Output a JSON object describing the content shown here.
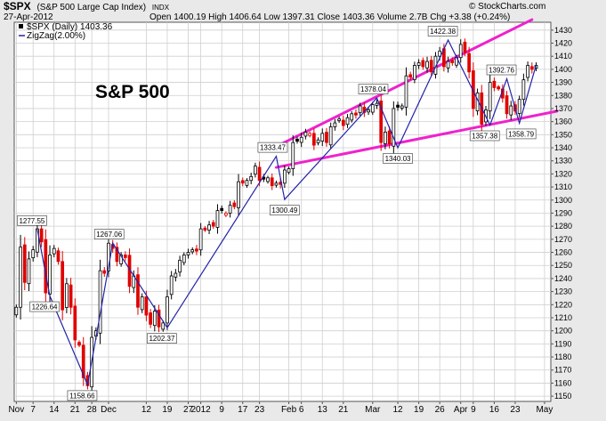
{
  "header": {
    "symbol": "$SPX",
    "name": "(S&P 500 Large Cap Index)",
    "exchange": "INDX",
    "date": "27-Apr-2012",
    "ohlc_text": "Open 1400.19  High 1406.64  Low 1397.31  Close 1403.36  Volume 2.7B  Chg +3.38 (+0.24%)",
    "brand": "© StockCharts.com",
    "legend_price": "$SPX (Daily) 1403.36",
    "legend_zigzag": "ZigZag(2.00%)",
    "title_overlay": "S&P 500"
  },
  "chart_data": {
    "type": "candlestick",
    "title": "S&P 500",
    "ylim": [
      1146,
      1436
    ],
    "y_ticks": [
      1150,
      1160,
      1170,
      1180,
      1190,
      1200,
      1210,
      1220,
      1230,
      1240,
      1250,
      1260,
      1270,
      1280,
      1290,
      1300,
      1310,
      1320,
      1330,
      1340,
      1350,
      1360,
      1370,
      1380,
      1390,
      1400,
      1410,
      1420,
      1430
    ],
    "x_tick_labels": [
      {
        "label": "Nov",
        "idx": 0
      },
      {
        "label": "7",
        "idx": 4
      },
      {
        "label": "14",
        "idx": 9
      },
      {
        "label": "21",
        "idx": 14
      },
      {
        "label": "28",
        "idx": 18
      },
      {
        "label": "Dec",
        "idx": 22
      },
      {
        "label": "12",
        "idx": 31
      },
      {
        "label": "19",
        "idx": 36
      },
      {
        "label": "27",
        "idx": 41
      },
      {
        "label": "2012",
        "idx": 44
      },
      {
        "label": "9",
        "idx": 49
      },
      {
        "label": "17",
        "idx": 54
      },
      {
        "label": "23",
        "idx": 58
      },
      {
        "label": "Feb",
        "idx": 65
      },
      {
        "label": "6",
        "idx": 68
      },
      {
        "label": "13",
        "idx": 73
      },
      {
        "label": "21",
        "idx": 78
      },
      {
        "label": "Mar",
        "idx": 85
      },
      {
        "label": "12",
        "idx": 91
      },
      {
        "label": "19",
        "idx": 96
      },
      {
        "label": "26",
        "idx": 101
      },
      {
        "label": "Apr",
        "idx": 106
      },
      {
        "label": "9",
        "idx": 109
      },
      {
        "label": "16",
        "idx": 114
      },
      {
        "label": "23",
        "idx": 119
      },
      {
        "label": "May",
        "idx": 126
      }
    ],
    "closes": [
      1218,
      1264,
      1237,
      1255,
      1262,
      1278,
      1268,
      1229,
      1258,
      1263,
      1253,
      1216,
      1236,
      1218,
      1193,
      1189,
      1164,
      1158,
      1195,
      1200,
      1246,
      1244,
      1267,
      1263,
      1253,
      1258,
      1256,
      1234,
      1242,
      1218,
      1226,
      1212,
      1205,
      1215,
      1203,
      1206,
      1226,
      1242,
      1244,
      1254,
      1258,
      1260,
      1262,
      1261,
      1278,
      1277,
      1281,
      1280,
      1292,
      1292,
      1290,
      1296,
      1295,
      1314,
      1313,
      1315,
      1318,
      1326,
      1315,
      1316,
      1317,
      1311,
      1313,
      1312,
      1323,
      1324,
      1344,
      1345,
      1348,
      1352,
      1351,
      1342,
      1346,
      1351,
      1344,
      1356,
      1359,
      1362,
      1357,
      1363,
      1366,
      1365,
      1372,
      1367,
      1369,
      1373,
      1374,
      1344,
      1352,
      1343,
      1370,
      1371,
      1372,
      1395,
      1394,
      1403,
      1405,
      1402,
      1406,
      1398,
      1410,
      1414,
      1402,
      1406,
      1405,
      1409,
      1419,
      1413,
      1398,
      1370,
      1382,
      1358,
      1369,
      1390,
      1386,
      1385,
      1378,
      1366,
      1372,
      1368,
      1377,
      1392,
      1403,
      1400,
      1403
    ],
    "zigzag": [
      {
        "idx": 5,
        "value": 1277.55
      },
      {
        "idx": 8,
        "value": 1226.64
      },
      {
        "idx": 17,
        "value": 1158.66
      },
      {
        "idx": 23,
        "value": 1267.06
      },
      {
        "idx": 36,
        "value": 1202.37
      },
      {
        "idx": 62,
        "value": 1333.47
      },
      {
        "idx": 64,
        "value": 1300.49
      },
      {
        "idx": 86,
        "value": 1378.04
      },
      {
        "idx": 91,
        "value": 1340.03
      },
      {
        "idx": 103,
        "value": 1422.38
      },
      {
        "idx": 113,
        "value": 1357.38
      },
      {
        "idx": 117,
        "value": 1392.76
      },
      {
        "idx": 120,
        "value": 1358.79
      },
      {
        "idx": 124,
        "value": 1403.36
      }
    ],
    "annotations": [
      "1277.55",
      "1226.64",
      "1158.66",
      "1267.06",
      "1202.37",
      "1333.47",
      "1300.49",
      "1378.04",
      "1340.03",
      "1422.38",
      "1357.38",
      "1392.76",
      "1358.79"
    ],
    "trendlines": [
      {
        "name": "upper",
        "from": [
          62,
          1341
        ],
        "to": [
          123,
          1438
        ]
      },
      {
        "name": "lower",
        "from": [
          62,
          1325
        ],
        "to": [
          129,
          1368
        ]
      }
    ],
    "colors": {
      "up": "#000000",
      "down": "#e00000",
      "zigzag": "#2222aa",
      "trend": "#ee22cc",
      "grid": "#cfcfcf"
    }
  }
}
